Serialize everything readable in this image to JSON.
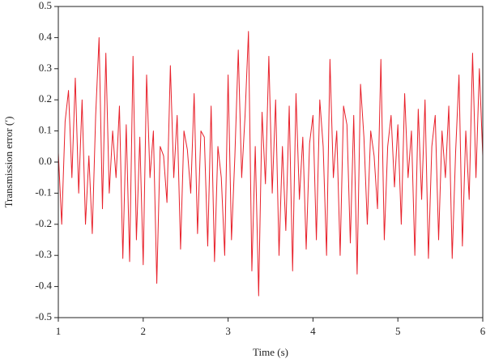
{
  "chart_data": {
    "type": "line",
    "xlabel": "Time (s)",
    "ylabel": "Transmission error (′)",
    "x": [
      1,
      1.04,
      1.08,
      1.12,
      1.16,
      1.2,
      1.24,
      1.28,
      1.32,
      1.36,
      1.4,
      1.44,
      1.48,
      1.52,
      1.56,
      1.6,
      1.64,
      1.68,
      1.72,
      1.76,
      1.8,
      1.84,
      1.88,
      1.92,
      1.96,
      2,
      2.04,
      2.08,
      2.12,
      2.16,
      2.2,
      2.24,
      2.28,
      2.32,
      2.36,
      2.4,
      2.44,
      2.48,
      2.52,
      2.56,
      2.6,
      2.64,
      2.68,
      2.72,
      2.76,
      2.8,
      2.84,
      2.88,
      2.92,
      2.96,
      3,
      3.04,
      3.08,
      3.12,
      3.16,
      3.2,
      3.24,
      3.28,
      3.32,
      3.36,
      3.4,
      3.44,
      3.48,
      3.52,
      3.56,
      3.6,
      3.64,
      3.68,
      3.72,
      3.76,
      3.8,
      3.84,
      3.88,
      3.92,
      3.96,
      4,
      4.04,
      4.08,
      4.12,
      4.16,
      4.2,
      4.24,
      4.28,
      4.32,
      4.36,
      4.4,
      4.44,
      4.48,
      4.52,
      4.56,
      4.6,
      4.64,
      4.68,
      4.72,
      4.76,
      4.8,
      4.84,
      4.88,
      4.92,
      4.96,
      5,
      5.04,
      5.08,
      5.12,
      5.16,
      5.2,
      5.24,
      5.28,
      5.32,
      5.36,
      5.4,
      5.44,
      5.48,
      5.52,
      5.56,
      5.6,
      5.64,
      5.68,
      5.72,
      5.76,
      5.8,
      5.84,
      5.88,
      5.92,
      5.96,
      6
    ],
    "series": [
      {
        "color": "#e8202a",
        "values": [
          0.03,
          -0.2,
          0.13,
          0.23,
          -0.05,
          0.27,
          -0.1,
          0.2,
          -0.2,
          0.02,
          -0.23,
          0.15,
          0.4,
          -0.15,
          0.35,
          -0.1,
          0.1,
          -0.05,
          0.18,
          -0.31,
          0.12,
          -0.32,
          0.34,
          -0.25,
          0.08,
          -0.33,
          0.28,
          -0.05,
          0.1,
          -0.39,
          0.05,
          0.02,
          -0.13,
          0.31,
          -0.05,
          0.15,
          -0.28,
          0.1,
          0.04,
          -0.1,
          0.22,
          -0.23,
          0.1,
          0.08,
          -0.27,
          0.18,
          -0.32,
          0.05,
          -0.05,
          -0.3,
          0.28,
          -0.25,
          0.02,
          0.36,
          -0.05,
          0.15,
          0.42,
          -0.35,
          0.05,
          -0.43,
          0.16,
          -0.07,
          0.34,
          -0.1,
          0.2,
          -0.3,
          0.05,
          -0.22,
          0.18,
          -0.35,
          0.22,
          -0.12,
          0.08,
          -0.28,
          0.06,
          0.15,
          -0.25,
          0.2,
          0.05,
          -0.3,
          0.33,
          -0.05,
          0.1,
          -0.3,
          0.18,
          0.12,
          -0.26,
          0.15,
          -0.36,
          0.25,
          0.08,
          -0.2,
          0.1,
          0.02,
          -0.15,
          0.33,
          -0.25,
          0.05,
          0.15,
          -0.08,
          0.12,
          -0.2,
          0.22,
          -0.05,
          0.1,
          -0.3,
          0.17,
          -0.12,
          0.2,
          -0.31,
          0.05,
          0.15,
          -0.25,
          0.1,
          -0.05,
          0.18,
          -0.31,
          0.03,
          0.28,
          -0.27,
          0.1,
          -0.12,
          0.35,
          -0.05,
          0.3,
          0.02
        ]
      }
    ],
    "xlim": [
      1,
      6
    ],
    "xticks": [
      1,
      2,
      3,
      4,
      5,
      6
    ],
    "ylim": [
      -0.5,
      0.5
    ],
    "yticks": [
      -0.5,
      -0.4,
      -0.3,
      -0.2,
      -0.1,
      {
        "value": 0,
        "label": "0.0"
      },
      0.1,
      0.2,
      0.3,
      0.4,
      0.5
    ]
  }
}
